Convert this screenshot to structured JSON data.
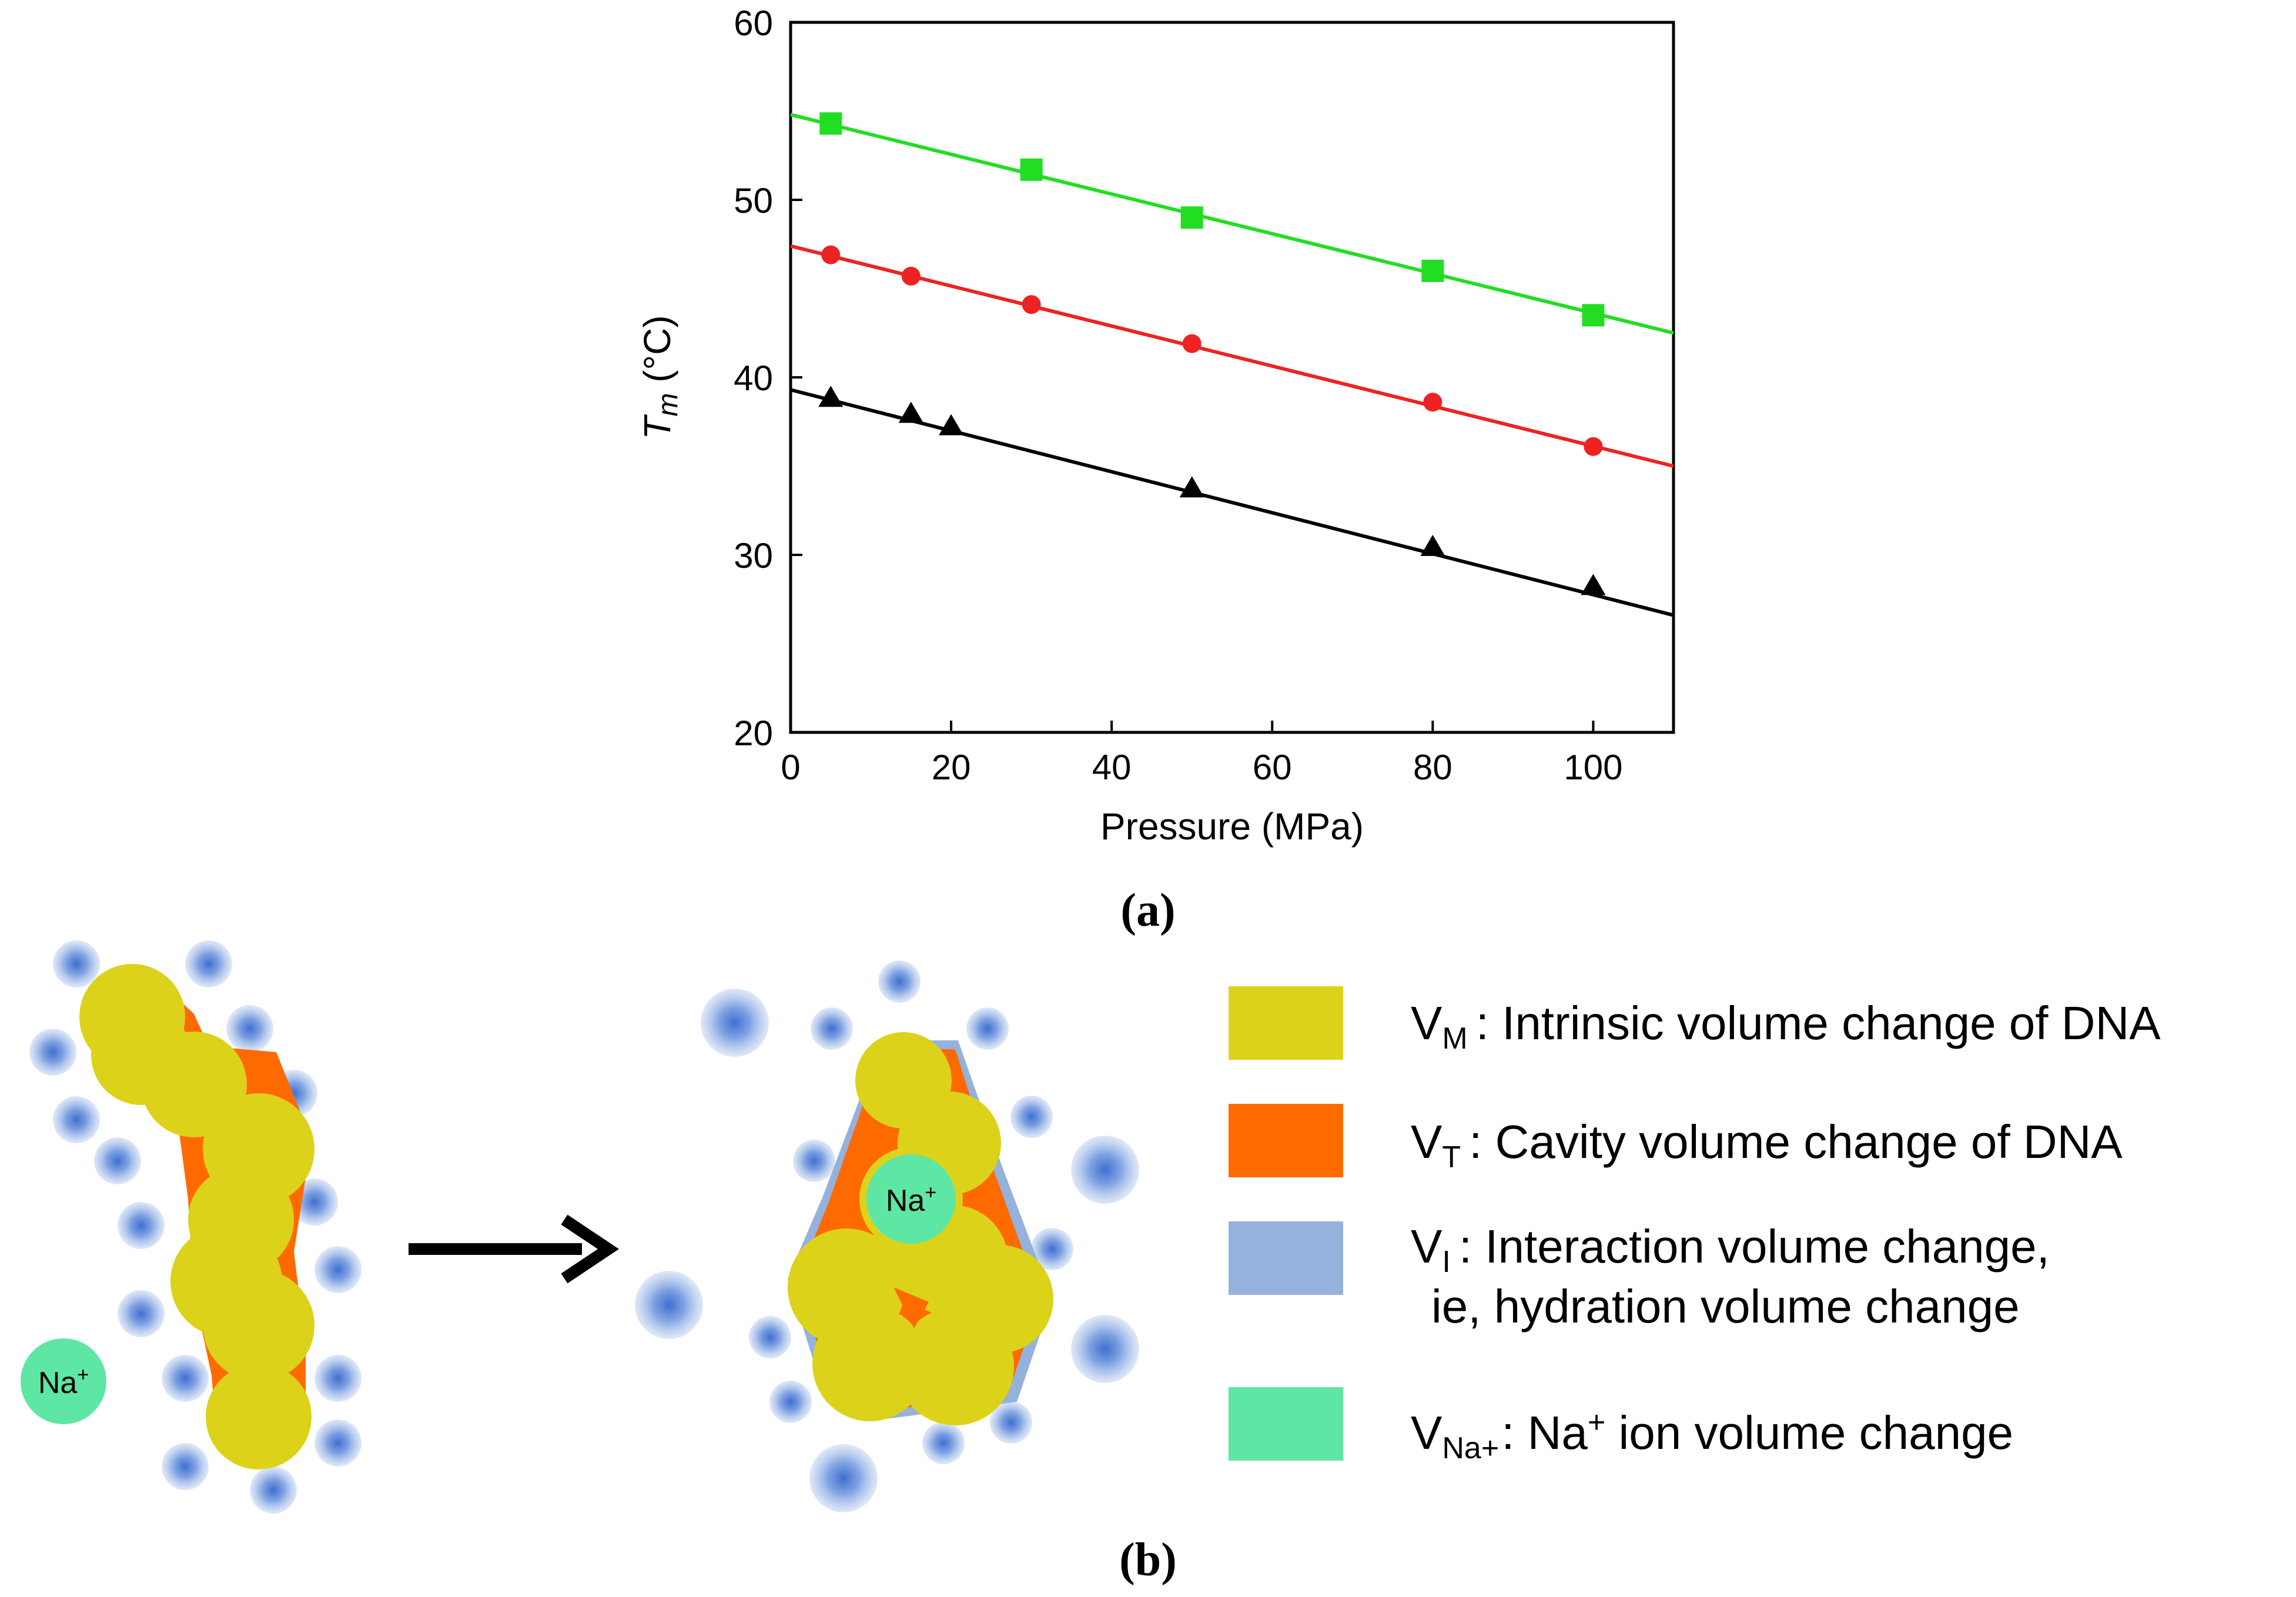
{
  "chart_data": {
    "type": "scatter",
    "title": "",
    "xlabel": "Pressure (MPa)",
    "ylabel_main": "T",
    "ylabel_sub": "m",
    "ylabel_unit": " (°C)",
    "xlim": [
      0,
      110
    ],
    "ylim": [
      20,
      60
    ],
    "xticks": [
      0,
      20,
      40,
      60,
      80,
      100
    ],
    "yticks": [
      20,
      30,
      40,
      50,
      60
    ],
    "grid": false,
    "series": [
      {
        "name": "green squares",
        "color": "#22dd22",
        "marker": "square",
        "points": [
          [
            5,
            54.3
          ],
          [
            30,
            51.7
          ],
          [
            50,
            49.0
          ],
          [
            80,
            46.0
          ],
          [
            100,
            43.5
          ]
        ],
        "fit": [
          [
            0,
            54.8
          ],
          [
            110,
            42.5
          ]
        ]
      },
      {
        "name": "red circles",
        "color": "#ee2222",
        "marker": "circle",
        "points": [
          [
            5,
            46.9
          ],
          [
            15,
            45.7
          ],
          [
            30,
            44.1
          ],
          [
            50,
            41.9
          ],
          [
            80,
            38.6
          ],
          [
            100,
            36.1
          ]
        ],
        "fit": [
          [
            0,
            47.4
          ],
          [
            110,
            35.0
          ]
        ]
      },
      {
        "name": "black triangles",
        "color": "#000000",
        "marker": "triangle",
        "points": [
          [
            5,
            38.8
          ],
          [
            15,
            37.9
          ],
          [
            20,
            37.2
          ],
          [
            50,
            33.7
          ],
          [
            80,
            30.4
          ],
          [
            100,
            28.2
          ]
        ],
        "fit": [
          [
            0,
            39.3
          ],
          [
            110,
            26.6
          ]
        ]
      }
    ]
  },
  "panel_a_label": "(a)",
  "panel_b_label": "(b)",
  "diagram": {
    "na_left": "Na",
    "na_left_sup": "+",
    "na_right": "Na",
    "na_right_sup": "+"
  },
  "legend": {
    "vm": {
      "main": "V",
      "sub": "M",
      "text": ": Intrinsic volume change of DNA",
      "color": "#dcd21a"
    },
    "vt": {
      "main": "V",
      "sub": "T",
      "text": ": Cavity volume change of DNA",
      "color": "#ff6a00"
    },
    "vi": {
      "main": "V",
      "sub": "I",
      "text": ": Interaction volume change,",
      "text2": "ie, hydration volume change",
      "color": "#94b2dc"
    },
    "vna": {
      "main": "V",
      "sub": "Na+",
      "text_pre": ": Na",
      "text_sup": "+",
      "text_post": " ion volume change",
      "color": "#5ee6a4"
    }
  }
}
